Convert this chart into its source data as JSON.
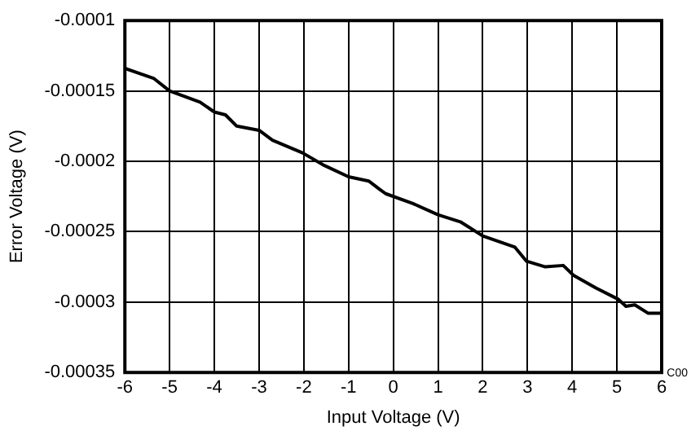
{
  "chart_data": {
    "type": "line",
    "xlabel": "Input Voltage (V)",
    "ylabel": "Error Voltage (V)",
    "annotations": [
      "C00"
    ],
    "series": [
      {
        "color": "#000000",
        "x": [
          -6,
          -5.36,
          -5,
          -4.32,
          -4,
          -3.75,
          -3.5,
          -3,
          -2.7,
          -2.03,
          -1.54,
          -1,
          -0.55,
          -0.3,
          -0.17,
          0.44,
          1,
          1.5,
          2,
          2.72,
          2.98,
          3.4,
          3.8,
          4.03,
          4.53,
          5.03,
          5.2,
          5.4,
          5.7,
          6
        ],
        "values": [
          -0.000134,
          -0.000141,
          -0.00015,
          -0.000158,
          -0.000165,
          -0.000167,
          -0.000175,
          -0.000178,
          -0.000185,
          -0.000194,
          -0.000203,
          -0.000211,
          -0.000214,
          -0.00022,
          -0.000223,
          -0.00023,
          -0.000238,
          -0.000243,
          -0.000253,
          -0.000261,
          -0.000271,
          -0.000275,
          -0.000274,
          -0.000281,
          -0.00029,
          -0.000298,
          -0.000303,
          -0.000302,
          -0.000308,
          -0.000308
        ]
      }
    ],
    "xlim": [
      -6,
      6
    ],
    "xticks": [
      -6,
      -5,
      -4,
      -3,
      -2,
      -1,
      0,
      1,
      2,
      3,
      4,
      5,
      6
    ],
    "ylim": [
      -0.00035,
      -0.0001
    ],
    "yticks": [
      -0.00035,
      -0.0003,
      -0.00025,
      -0.0002,
      -0.00015,
      -0.0001
    ],
    "grid": true,
    "legend": false,
    "marker": "none",
    "line_style": "solid"
  }
}
